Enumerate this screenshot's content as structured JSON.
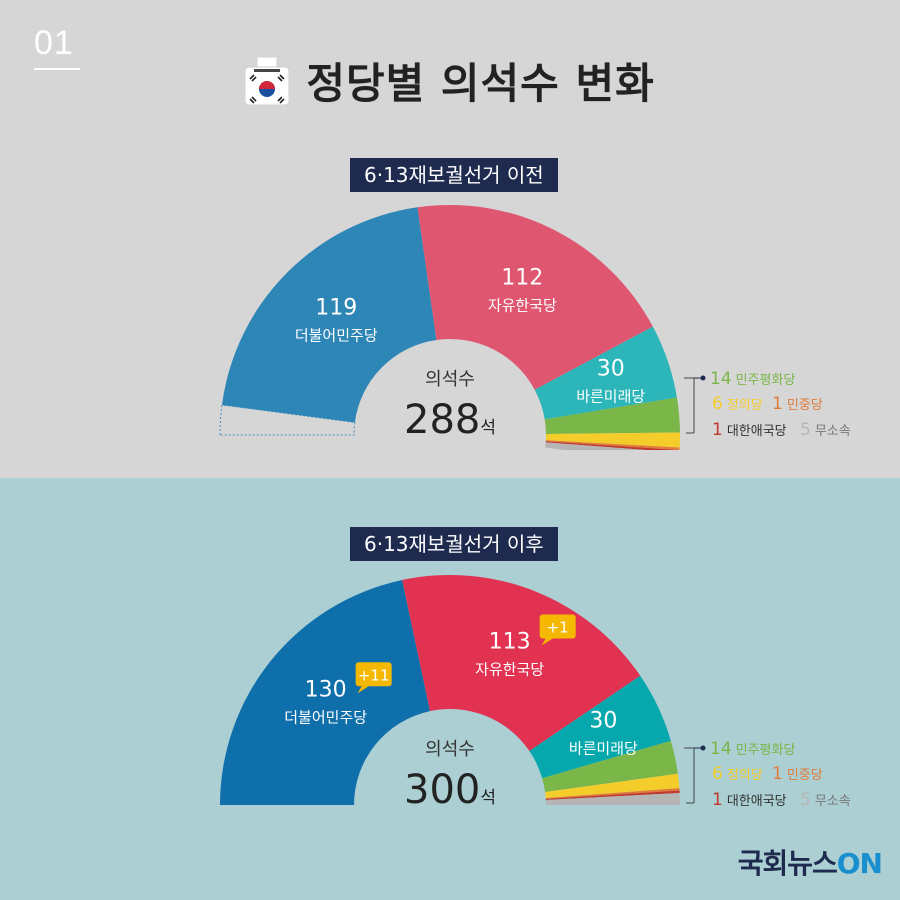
{
  "header": {
    "page_number": "01",
    "title": "정당별 의석수 변화"
  },
  "colors": {
    "minjoo_before": "#2e86b7",
    "jayu_before": "#df5670",
    "bareun_before": "#2cb6b9",
    "minjoo_after": "#0f6fab",
    "jayu_after": "#e23252",
    "bareun_after": "#06a8ae",
    "pyeonghwa": "#7ab648",
    "jeongui": "#f5cd2b",
    "minjung": "#e07b39",
    "daehan": "#c0392b",
    "musosok": "#b5b5b5",
    "badge": "#f5b800"
  },
  "brand": {
    "name": "국회뉴스",
    "suffix": "ON"
  },
  "chart_data": [
    {
      "type": "pie",
      "shape": "half-donut",
      "title": "6·13재보궐선거 이전",
      "total_label": "의석수",
      "total": "288",
      "total_unit": "석",
      "series": [
        {
          "name": "더불어민주당",
          "value": 119
        },
        {
          "name": "자유한국당",
          "value": 112
        },
        {
          "name": "바른미래당",
          "value": 30
        },
        {
          "name": "민주평화당",
          "value": 14
        },
        {
          "name": "정의당",
          "value": 6
        },
        {
          "name": "민중당",
          "value": 1
        },
        {
          "name": "대한애국당",
          "value": 1
        },
        {
          "name": "무소속",
          "value": 5
        }
      ],
      "vacant_seats": 12
    },
    {
      "type": "pie",
      "shape": "half-donut",
      "title": "6·13재보궐선거 이후",
      "total_label": "의석수",
      "total": "300",
      "total_unit": "석",
      "series": [
        {
          "name": "더불어민주당",
          "value": 130,
          "change": "+11"
        },
        {
          "name": "자유한국당",
          "value": 113,
          "change": "+1"
        },
        {
          "name": "바른미래당",
          "value": 30
        },
        {
          "name": "민주평화당",
          "value": 14
        },
        {
          "name": "정의당",
          "value": 6
        },
        {
          "name": "민중당",
          "value": 1
        },
        {
          "name": "대한애국당",
          "value": 1
        },
        {
          "name": "무소속",
          "value": 5
        }
      ]
    }
  ]
}
